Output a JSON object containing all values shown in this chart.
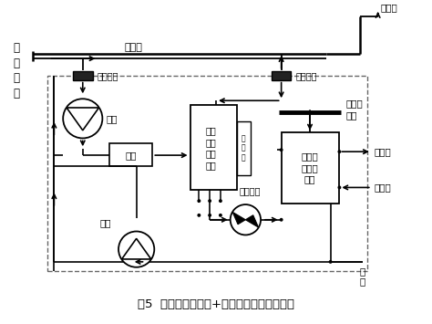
{
  "title": "图5  直接接触式换热+吸收式热泵系统流程图",
  "bg_color": "#ffffff",
  "line_color": "#000000",
  "dashed_color": "#666666",
  "boiler_chars": [
    "锅",
    "炉",
    "排",
    "烟"
  ],
  "label_main_duct": "主烟道",
  "label_damper1": "烟道风门",
  "label_damper2": "烟道风门",
  "label_fan1": "风机",
  "label_fan2": "风机",
  "label_smoke_box": "烟箱",
  "label_heat_ex": "直接\n接触\n式换\n热器",
  "label_valve": "阀\n调\n节",
  "label_circ_pump": "循环水泵",
  "label_abs_pump": "直燃型\n吸收式\n热泵",
  "label_nat_gas": "天然气\n管道",
  "label_hot_water": "热水出",
  "label_cold_water": "冷水进",
  "label_exhaust": "排\n烟",
  "label_chimney": "接烟囱"
}
